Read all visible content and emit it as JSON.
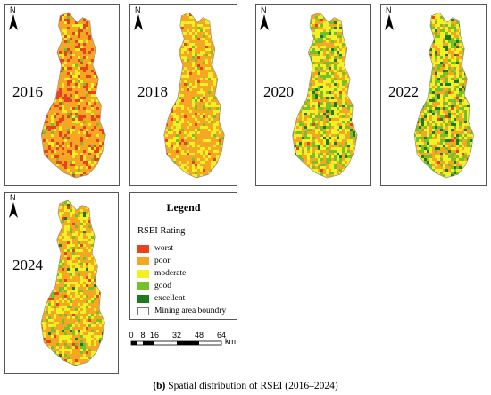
{
  "panels": [
    {
      "year": "2016",
      "north": "N"
    },
    {
      "year": "2018",
      "north": "N"
    },
    {
      "year": "2020",
      "north": "N"
    },
    {
      "year": "2022",
      "north": "N"
    },
    {
      "year": "2024",
      "north": "N"
    }
  ],
  "legend": {
    "title": "Legend",
    "subtitle": "RSEI Rating",
    "items": [
      {
        "label": "worst",
        "color": "#e8421c"
      },
      {
        "label": "poor",
        "color": "#f5a623"
      },
      {
        "label": "moderate",
        "color": "#f3f023"
      },
      {
        "label": "good",
        "color": "#74c12b"
      },
      {
        "label": "excellent",
        "color": "#1f7a1f"
      },
      {
        "label": "Mining area boundry",
        "color": "#ffffff"
      }
    ]
  },
  "scale": {
    "ticks": [
      "0",
      "8",
      "16",
      "32",
      "48",
      "64"
    ],
    "unit": "km"
  },
  "caption": {
    "label": "(b)",
    "text": "Spatial distribution of RSEI (2016–2024)"
  }
}
